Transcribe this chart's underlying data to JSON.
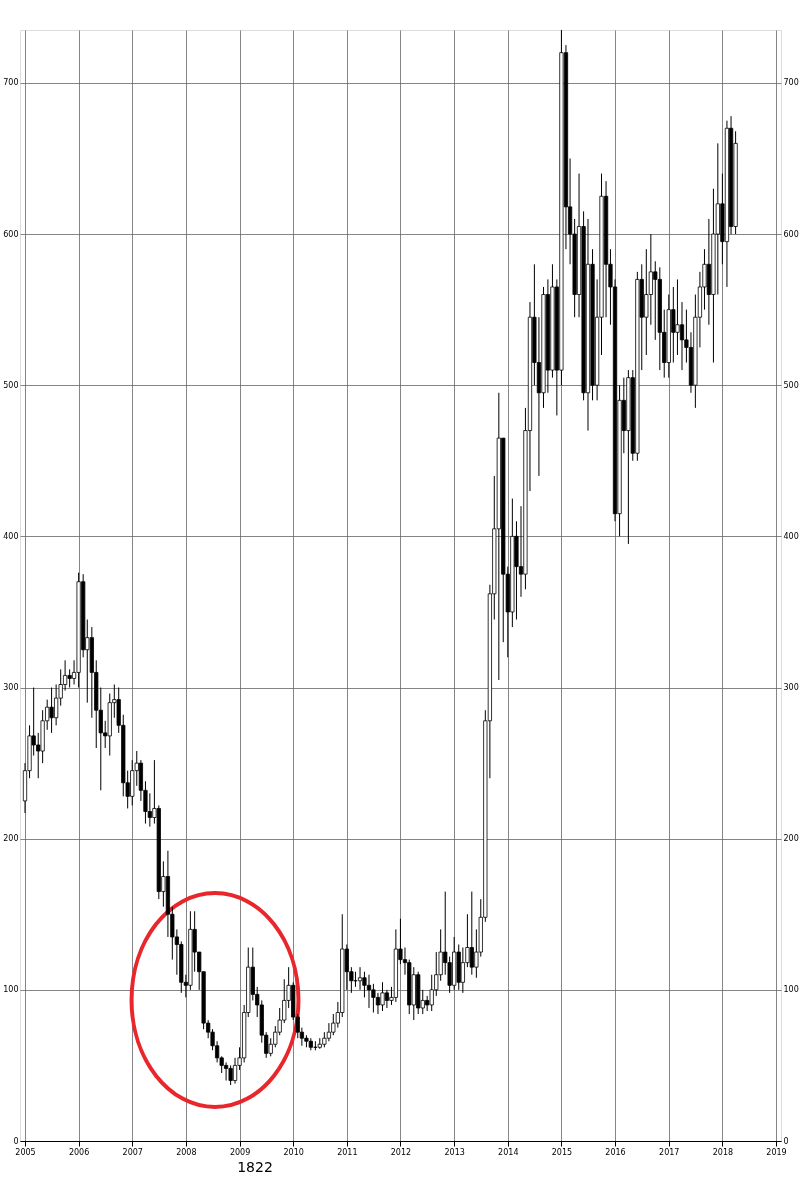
{
  "chart_data": {
    "type": "candlestick",
    "x": [
      "2005-01",
      "2005-02",
      "2005-03",
      "2005-04",
      "2005-05",
      "2005-06",
      "2005-07",
      "2005-08",
      "2005-09",
      "2005-10",
      "2005-11",
      "2005-12",
      "2006-01",
      "2006-02",
      "2006-03",
      "2006-04",
      "2006-05",
      "2006-06",
      "2006-07",
      "2006-08",
      "2006-09",
      "2006-10",
      "2006-11",
      "2006-12",
      "2007-01",
      "2007-02",
      "2007-03",
      "2007-04",
      "2007-05",
      "2007-06",
      "2007-07",
      "2007-08",
      "2007-09",
      "2007-10",
      "2007-11",
      "2007-12",
      "2008-01",
      "2008-02",
      "2008-03",
      "2008-04",
      "2008-05",
      "2008-06",
      "2008-07",
      "2008-08",
      "2008-09",
      "2008-10",
      "2008-11",
      "2008-12",
      "2009-01",
      "2009-02",
      "2009-03",
      "2009-04",
      "2009-05",
      "2009-06",
      "2009-07",
      "2009-08",
      "2009-09",
      "2009-10",
      "2009-11",
      "2009-12",
      "2010-01",
      "2010-02",
      "2010-03",
      "2010-04",
      "2010-05",
      "2010-06",
      "2010-07",
      "2010-08",
      "2010-09",
      "2010-10",
      "2010-11",
      "2010-12",
      "2011-01",
      "2011-02",
      "2011-03",
      "2011-04",
      "2011-05",
      "2011-06",
      "2011-07",
      "2011-08",
      "2011-09",
      "2011-10",
      "2011-11",
      "2011-12",
      "2012-01",
      "2012-02",
      "2012-03",
      "2012-04",
      "2012-05",
      "2012-06",
      "2012-07",
      "2012-08",
      "2012-09",
      "2012-10",
      "2012-11",
      "2012-12",
      "2013-01",
      "2013-02",
      "2013-03",
      "2013-04",
      "2013-05",
      "2013-06",
      "2013-07",
      "2013-08",
      "2013-09",
      "2013-10",
      "2013-11",
      "2013-12",
      "2014-01",
      "2014-02",
      "2014-03",
      "2014-04",
      "2014-05",
      "2014-06",
      "2014-07",
      "2014-08",
      "2014-09",
      "2014-10",
      "2014-11",
      "2014-12",
      "2015-01",
      "2015-02",
      "2015-03",
      "2015-04",
      "2015-05",
      "2015-06",
      "2015-07",
      "2015-08",
      "2015-09",
      "2015-10",
      "2015-11",
      "2015-12",
      "2016-01",
      "2016-02",
      "2016-03",
      "2016-04",
      "2016-05",
      "2016-06",
      "2016-07",
      "2016-08",
      "2016-09",
      "2016-10",
      "2016-11",
      "2016-12",
      "2017-01",
      "2017-02",
      "2017-03",
      "2017-04",
      "2017-05",
      "2017-06",
      "2017-07",
      "2017-08",
      "2017-09",
      "2017-10",
      "2017-11",
      "2017-12",
      "2018-01",
      "2018-02",
      "2018-03",
      "2018-04"
    ],
    "ohlc": [
      [
        225,
        250,
        217,
        245
      ],
      [
        245,
        275,
        240,
        268
      ],
      [
        268,
        300,
        255,
        262
      ],
      [
        262,
        270,
        240,
        258
      ],
      [
        258,
        285,
        250,
        278
      ],
      [
        278,
        292,
        272,
        287
      ],
      [
        287,
        300,
        270,
        280
      ],
      [
        280,
        302,
        275,
        293
      ],
      [
        293,
        312,
        288,
        302
      ],
      [
        302,
        318,
        298,
        308
      ],
      [
        308,
        312,
        300,
        306
      ],
      [
        306,
        318,
        302,
        310
      ],
      [
        310,
        376,
        300,
        370
      ],
      [
        370,
        375,
        320,
        325
      ],
      [
        325,
        345,
        290,
        333
      ],
      [
        333,
        340,
        280,
        310
      ],
      [
        310,
        318,
        260,
        285
      ],
      [
        285,
        300,
        232,
        270
      ],
      [
        270,
        278,
        260,
        268
      ],
      [
        268,
        296,
        255,
        290
      ],
      [
        290,
        302,
        280,
        292
      ],
      [
        292,
        300,
        270,
        275
      ],
      [
        275,
        282,
        228,
        237
      ],
      [
        237,
        245,
        220,
        228
      ],
      [
        228,
        252,
        222,
        245
      ],
      [
        245,
        258,
        235,
        250
      ],
      [
        250,
        252,
        225,
        232
      ],
      [
        232,
        238,
        210,
        218
      ],
      [
        218,
        230,
        208,
        214
      ],
      [
        214,
        252,
        210,
        220
      ],
      [
        220,
        222,
        160,
        165
      ],
      [
        165,
        185,
        155,
        175
      ],
      [
        175,
        192,
        135,
        150
      ],
      [
        150,
        155,
        120,
        135
      ],
      [
        135,
        140,
        110,
        130
      ],
      [
        130,
        132,
        98,
        105
      ],
      [
        105,
        110,
        95,
        103
      ],
      [
        103,
        152,
        100,
        140
      ],
      [
        140,
        152,
        112,
        125
      ],
      [
        125,
        125,
        100,
        112
      ],
      [
        112,
        112,
        74,
        78
      ],
      [
        78,
        80,
        68,
        72
      ],
      [
        72,
        74,
        60,
        63
      ],
      [
        63,
        66,
        52,
        55
      ],
      [
        55,
        56,
        45,
        50
      ],
      [
        50,
        52,
        40,
        48
      ],
      [
        48,
        50,
        37,
        40
      ],
      [
        40,
        55,
        38,
        50
      ],
      [
        50,
        62,
        47,
        55
      ],
      [
        55,
        90,
        52,
        85
      ],
      [
        85,
        128,
        82,
        115
      ],
      [
        115,
        128,
        93,
        97
      ],
      [
        97,
        102,
        82,
        90
      ],
      [
        90,
        93,
        65,
        70
      ],
      [
        70,
        72,
        55,
        58
      ],
      [
        58,
        68,
        56,
        64
      ],
      [
        64,
        76,
        62,
        72
      ],
      [
        72,
        88,
        70,
        80
      ],
      [
        80,
        107,
        78,
        93
      ],
      [
        93,
        115,
        88,
        103
      ],
      [
        103,
        105,
        80,
        82
      ],
      [
        82,
        84,
        68,
        72
      ],
      [
        72,
        75,
        63,
        68
      ],
      [
        68,
        70,
        62,
        66
      ],
      [
        66,
        68,
        60,
        62
      ],
      [
        62,
        66,
        60,
        62
      ],
      [
        62,
        68,
        61,
        64
      ],
      [
        64,
        72,
        62,
        68
      ],
      [
        68,
        78,
        66,
        72
      ],
      [
        72,
        84,
        70,
        78
      ],
      [
        78,
        92,
        75,
        85
      ],
      [
        85,
        150,
        82,
        127
      ],
      [
        127,
        130,
        100,
        112
      ],
      [
        112,
        115,
        98,
        106
      ],
      [
        106,
        112,
        102,
        106
      ],
      [
        106,
        115,
        100,
        108
      ],
      [
        108,
        112,
        95,
        103
      ],
      [
        103,
        110,
        88,
        100
      ],
      [
        100,
        104,
        85,
        95
      ],
      [
        95,
        98,
        84,
        90
      ],
      [
        90,
        105,
        86,
        98
      ],
      [
        98,
        100,
        88,
        93
      ],
      [
        93,
        102,
        90,
        95
      ],
      [
        95,
        140,
        92,
        127
      ],
      [
        127,
        147,
        117,
        120
      ],
      [
        120,
        128,
        110,
        118
      ],
      [
        118,
        120,
        84,
        90
      ],
      [
        90,
        115,
        80,
        110
      ],
      [
        110,
        112,
        84,
        88
      ],
      [
        88,
        100,
        84,
        93
      ],
      [
        93,
        96,
        86,
        90
      ],
      [
        90,
        110,
        86,
        100
      ],
      [
        100,
        125,
        96,
        110
      ],
      [
        110,
        140,
        106,
        125
      ],
      [
        125,
        165,
        110,
        118
      ],
      [
        118,
        122,
        98,
        103
      ],
      [
        103,
        135,
        100,
        125
      ],
      [
        125,
        130,
        100,
        105
      ],
      [
        105,
        128,
        98,
        118
      ],
      [
        118,
        150,
        115,
        128
      ],
      [
        128,
        165,
        110,
        115
      ],
      [
        115,
        140,
        108,
        125
      ],
      [
        125,
        160,
        122,
        148
      ],
      [
        148,
        285,
        145,
        278
      ],
      [
        278,
        368,
        240,
        362
      ],
      [
        362,
        440,
        345,
        405
      ],
      [
        405,
        495,
        305,
        465
      ],
      [
        465,
        465,
        330,
        375
      ],
      [
        375,
        380,
        320,
        350
      ],
      [
        350,
        425,
        340,
        400
      ],
      [
        400,
        410,
        345,
        380
      ],
      [
        380,
        420,
        360,
        375
      ],
      [
        375,
        485,
        365,
        470
      ],
      [
        470,
        555,
        430,
        545
      ],
      [
        545,
        580,
        500,
        515
      ],
      [
        515,
        545,
        440,
        495
      ],
      [
        495,
        565,
        485,
        560
      ],
      [
        560,
        570,
        495,
        510
      ],
      [
        510,
        580,
        505,
        565
      ],
      [
        565,
        570,
        480,
        510
      ],
      [
        510,
        735,
        500,
        720
      ],
      [
        720,
        725,
        590,
        618
      ],
      [
        618,
        650,
        580,
        600
      ],
      [
        600,
        610,
        545,
        560
      ],
      [
        560,
        640,
        545,
        605
      ],
      [
        605,
        615,
        490,
        495
      ],
      [
        495,
        610,
        470,
        580
      ],
      [
        580,
        590,
        490,
        500
      ],
      [
        500,
        570,
        490,
        545
      ],
      [
        545,
        640,
        520,
        625
      ],
      [
        625,
        635,
        545,
        580
      ],
      [
        580,
        590,
        540,
        565
      ],
      [
        565,
        570,
        410,
        415
      ],
      [
        415,
        500,
        400,
        490
      ],
      [
        490,
        505,
        455,
        470
      ],
      [
        470,
        510,
        395,
        505
      ],
      [
        505,
        510,
        450,
        455
      ],
      [
        455,
        575,
        450,
        570
      ],
      [
        570,
        580,
        510,
        545
      ],
      [
        545,
        590,
        520,
        560
      ],
      [
        560,
        600,
        540,
        575
      ],
      [
        575,
        582,
        530,
        570
      ],
      [
        570,
        578,
        510,
        535
      ],
      [
        535,
        550,
        505,
        515
      ],
      [
        515,
        560,
        505,
        550
      ],
      [
        550,
        565,
        515,
        535
      ],
      [
        535,
        570,
        520,
        540
      ],
      [
        540,
        555,
        510,
        530
      ],
      [
        530,
        550,
        515,
        525
      ],
      [
        525,
        535,
        495,
        500
      ],
      [
        500,
        560,
        485,
        545
      ],
      [
        545,
        575,
        525,
        565
      ],
      [
        565,
        590,
        550,
        580
      ],
      [
        580,
        610,
        540,
        560
      ],
      [
        560,
        630,
        515,
        600
      ],
      [
        600,
        660,
        560,
        620
      ],
      [
        620,
        640,
        580,
        595
      ],
      [
        595,
        675,
        565,
        670
      ],
      [
        670,
        678,
        600,
        605
      ],
      [
        605,
        668,
        600,
        660
      ]
    ],
    "xlim": [
      "2005",
      "2019"
    ],
    "xticks": [
      {
        "value": "2005",
        "label": "2005"
      },
      {
        "value": "2006",
        "label": "2006"
      },
      {
        "value": "2007",
        "label": "2007"
      },
      {
        "value": "2008",
        "label": "2008"
      },
      {
        "value": "2009",
        "label": "2009"
      },
      {
        "value": "2010",
        "label": "2010"
      },
      {
        "value": "2011",
        "label": "2011"
      },
      {
        "value": "2012",
        "label": "2012"
      },
      {
        "value": "2013",
        "label": "2013"
      },
      {
        "value": "2014",
        "label": "2014"
      },
      {
        "value": "2015",
        "label": "2015"
      },
      {
        "value": "2016",
        "label": "2016"
      },
      {
        "value": "2017",
        "label": "2017"
      },
      {
        "value": "2018",
        "label": "2018"
      },
      {
        "value": "2019",
        "label": "2019"
      }
    ],
    "ylim": [
      0,
      735
    ],
    "yticks": [
      0,
      100,
      200,
      300,
      400,
      500,
      600,
      700
    ],
    "y2lim": [
      0,
      735
    ],
    "y2ticks": [
      0,
      100,
      200,
      300,
      400,
      500,
      600,
      700
    ],
    "grid": true,
    "annotations": [
      "1822"
    ]
  }
}
